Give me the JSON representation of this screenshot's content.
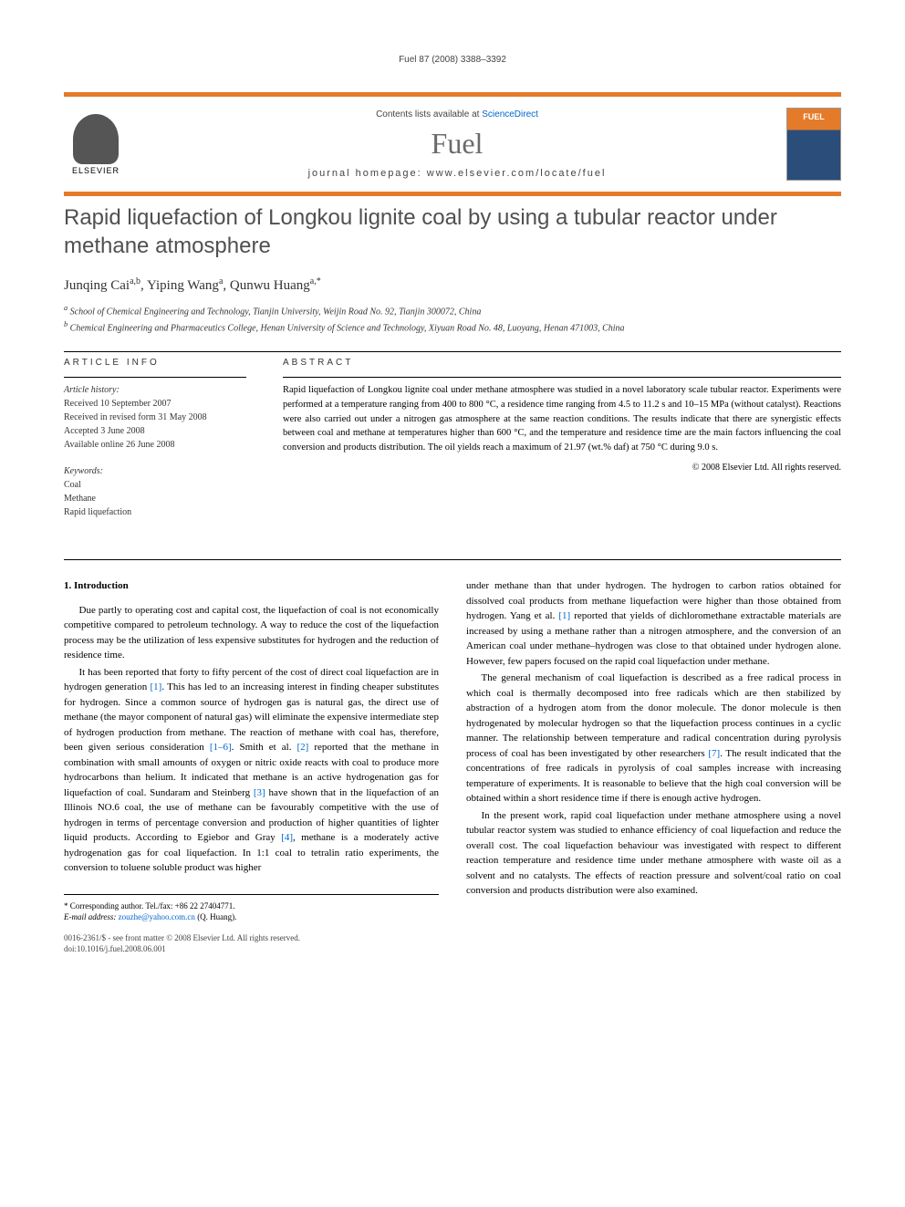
{
  "citation": "Fuel 87 (2008) 3388–3392",
  "header": {
    "contents_text": "Contents lists available at ",
    "contents_link": "ScienceDirect",
    "journal_name": "Fuel",
    "homepage_label": "journal homepage: ",
    "homepage_url": "www.elsevier.com/locate/fuel",
    "publisher": "ELSEVIER"
  },
  "article": {
    "title": "Rapid liquefaction of Longkou lignite coal by using a tubular reactor under methane atmosphere",
    "authors_html": "Junqing Cai",
    "author1_sup": "a,b",
    "author2": ", Yiping Wang",
    "author2_sup": "a",
    "author3": ", Qunwu Huang",
    "author3_sup": "a,*",
    "affiliations": {
      "a": "School of Chemical Engineering and Technology, Tianjin University, Weijin Road No. 92, Tianjin 300072, China",
      "b": "Chemical Engineering and Pharmaceutics College, Henan University of Science and Technology, Xiyuan Road No. 48, Luoyang, Henan 471003, China"
    }
  },
  "article_info": {
    "heading": "ARTICLE INFO",
    "history_label": "Article history:",
    "received": "Received 10 September 2007",
    "revised": "Received in revised form 31 May 2008",
    "accepted": "Accepted 3 June 2008",
    "online": "Available online 26 June 2008",
    "keywords_label": "Keywords:",
    "keywords": [
      "Coal",
      "Methane",
      "Rapid liquefaction"
    ]
  },
  "abstract": {
    "heading": "ABSTRACT",
    "text": "Rapid liquefaction of Longkou lignite coal under methane atmosphere was studied in a novel laboratory scale tubular reactor. Experiments were performed at a temperature ranging from 400 to 800 °C, a residence time ranging from 4.5 to 11.2 s and 10–15 MPa (without catalyst). Reactions were also carried out under a nitrogen gas atmosphere at the same reaction conditions. The results indicate that there are synergistic effects between coal and methane at temperatures higher than 600 °C, and the temperature and residence time are the main factors influencing the coal conversion and products distribution. The oil yields reach a maximum of 21.97 (wt.% daf) at 750 °C during 9.0 s.",
    "copyright": "© 2008 Elsevier Ltd. All rights reserved."
  },
  "body": {
    "section1_heading": "1. Introduction",
    "p1": "Due partly to operating cost and capital cost, the liquefaction of coal is not economically competitive compared to petroleum technology. A way to reduce the cost of the liquefaction process may be the utilization of less expensive substitutes for hydrogen and the reduction of residence time.",
    "p2a": "It has been reported that forty to fifty percent of the cost of direct coal liquefaction are in hydrogen generation ",
    "ref1": "[1]",
    "p2b": ". This has led to an increasing interest in finding cheaper substitutes for hydrogen. Since a common source of hydrogen gas is natural gas, the direct use of methane (the mayor component of natural gas) will eliminate the expensive intermediate step of hydrogen production from methane. The reaction of methane with coal has, therefore, been given serious consideration ",
    "ref1_6": "[1–6]",
    "p2c": ". Smith et al. ",
    "ref2": "[2]",
    "p2d": " reported that the methane in combination with small amounts of oxygen or nitric oxide reacts with coal to produce more hydrocarbons than helium. It indicated that methane is an active hydrogenation gas for liquefaction of coal. Sundaram and Steinberg ",
    "ref3": "[3]",
    "p2e": " have shown that in the liquefaction of an Illinois NO.6 coal, the use of methane can be favourably competitive with the use of hydrogen in terms of percentage conversion and production of higher quantities of lighter liquid products. According to Egiebor and Gray ",
    "ref4": "[4]",
    "p2f": ", methane is a moderately active hydrogenation gas for coal liquefaction. In 1:1 coal to tetralin ratio experiments, the conversion to toluene soluble product was higher",
    "p3a": "under methane than that under hydrogen. The hydrogen to carbon ratios obtained for dissolved coal products from methane liquefaction were higher than those obtained from hydrogen. Yang et al. ",
    "ref1b": "[1]",
    "p3b": " reported that yields of dichloromethane extractable materials are increased by using a methane rather than a nitrogen atmosphere, and the conversion of an American coal under methane–hydrogen was close to that obtained under hydrogen alone. However, few papers focused on the rapid coal liquefaction under methane.",
    "p4a": "The general mechanism of coal liquefaction is described as a free radical process in which coal is thermally decomposed into free radicals which are then stabilized by abstraction of a hydrogen atom from the donor molecule. The donor molecule is then hydrogenated by molecular hydrogen so that the liquefaction process continues in a cyclic manner. The relationship between temperature and radical concentration during pyrolysis process of coal has been investigated by other researchers ",
    "ref7": "[7]",
    "p4b": ". The result indicated that the concentrations of free radicals in pyrolysis of coal samples increase with increasing temperature of experiments. It is reasonable to believe that the high coal conversion will be obtained within a short residence time if there is enough active hydrogen.",
    "p5": "In the present work, rapid coal liquefaction under methane atmosphere using a novel tubular reactor system was studied to enhance efficiency of coal liquefaction and reduce the overall cost. The coal liquefaction behaviour was investigated with respect to different reaction temperature and residence time under methane atmosphere with waste oil as a solvent and no catalysts. The effects of reaction pressure and solvent/coal ratio on coal conversion and products distribution were also examined."
  },
  "footnote": {
    "corresponding": "* Corresponding author. Tel./fax: +86 22 27404771.",
    "email_label": "E-mail address:",
    "email": "zouzhe@yahoo.com.cn",
    "email_name": " (Q. Huang)."
  },
  "footer": {
    "line1": "0016-2361/$ - see front matter © 2008 Elsevier Ltd. All rights reserved.",
    "line2": "doi:10.1016/j.fuel.2008.06.001"
  },
  "colors": {
    "accent": "#e47b2a",
    "link": "#0066cc",
    "title_gray": "#505050",
    "journal_gray": "#6b6b6b"
  }
}
